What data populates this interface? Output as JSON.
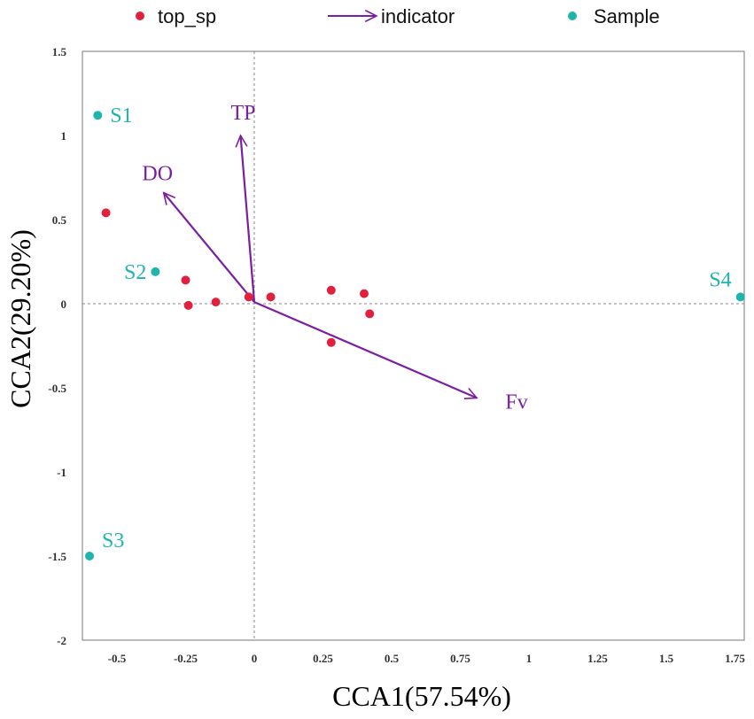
{
  "chart_data": {
    "type": "scatter",
    "title": "",
    "xlabel": "CCA1(57.54%)",
    "ylabel": "CCA2(29.20%)",
    "xlim": [
      -0.62,
      1.79
    ],
    "ylim": [
      -2,
      1.5
    ],
    "xticks": [
      -0.5,
      -0.25,
      0,
      0.25,
      0.5,
      0.75,
      1,
      1.25,
      1.5,
      1.75
    ],
    "xtick_labels": [
      "-0.5",
      "-0.25",
      "0",
      "0.25",
      "0.5",
      "0.75",
      "1",
      "1.25",
      "1.5",
      "1.75"
    ],
    "yticks": [
      1.5,
      1,
      0.5,
      0,
      -0.5,
      -1,
      -1.5,
      -2
    ],
    "ytick_labels": [
      "1.5",
      "1",
      "0.5",
      "0",
      "-0.5",
      "-1",
      "-1.5",
      "-2"
    ],
    "legend": {
      "placement": "top",
      "entries": [
        {
          "label": "top_sp",
          "marker": "dot",
          "color": "#e0203c"
        },
        {
          "label": "indicator",
          "marker": "arrow",
          "color": "#7b1fa2"
        },
        {
          "label": "Sample",
          "marker": "dot",
          "color": "#1fb5ad"
        }
      ]
    },
    "series": [
      {
        "name": "top_sp",
        "color": "#e0203c",
        "points": [
          {
            "x": -0.54,
            "y": 0.54
          },
          {
            "x": -0.25,
            "y": 0.14
          },
          {
            "x": -0.24,
            "y": -0.01
          },
          {
            "x": -0.14,
            "y": 0.01
          },
          {
            "x": -0.02,
            "y": 0.04
          },
          {
            "x": 0.06,
            "y": 0.04
          },
          {
            "x": 0.28,
            "y": 0.08
          },
          {
            "x": 0.4,
            "y": 0.06
          },
          {
            "x": 0.42,
            "y": -0.06
          },
          {
            "x": 0.28,
            "y": -0.23
          }
        ]
      },
      {
        "name": "Sample",
        "color": "#1fb5ad",
        "points": [
          {
            "label": "S1",
            "x": -0.57,
            "y": 1.12
          },
          {
            "label": "S2",
            "x": -0.36,
            "y": 0.19
          },
          {
            "label": "S3",
            "x": -0.6,
            "y": -1.5
          },
          {
            "label": "S4",
            "x": 1.77,
            "y": 0.04
          }
        ]
      }
    ],
    "vectors": {
      "name": "indicator",
      "color": "#7b1fa2",
      "origin": [
        0,
        0.01
      ],
      "items": [
        {
          "label": "TP",
          "x": -0.05,
          "y": 1.0
        },
        {
          "label": "DO",
          "x": -0.33,
          "y": 0.66
        },
        {
          "label": "Fv",
          "x": 0.81,
          "y": -0.56
        }
      ]
    }
  }
}
